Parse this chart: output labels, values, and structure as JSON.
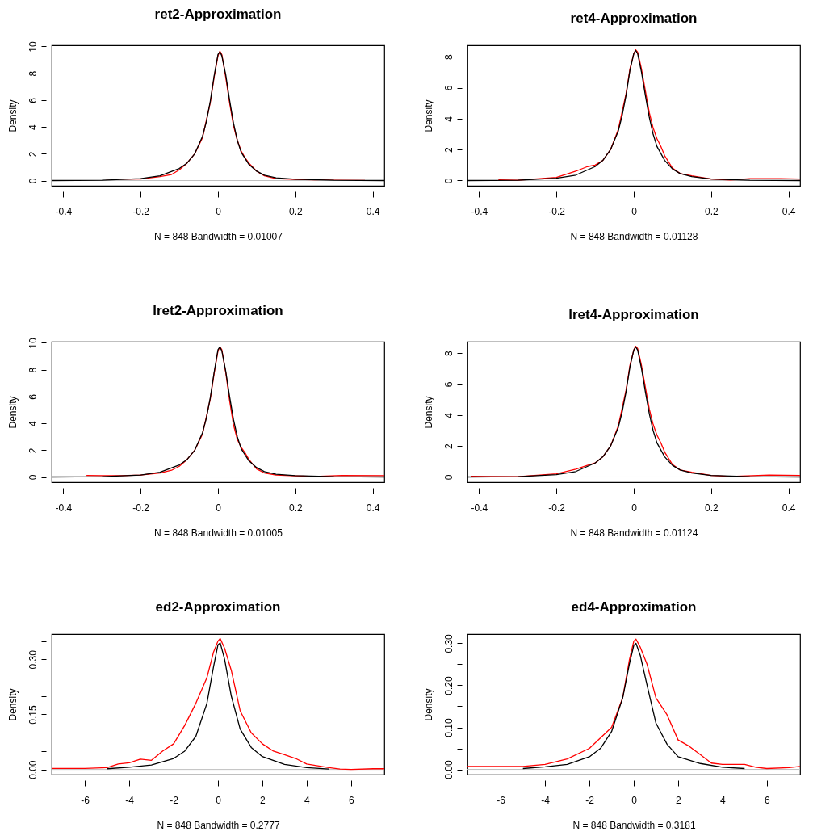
{
  "chart_data": [
    {
      "type": "line",
      "title": "ret2-Approximation",
      "xlabel": "N = 848   Bandwidth = 0.01007",
      "ylabel": "Density",
      "xlim": [
        -0.43,
        0.43
      ],
      "xticks": [
        -0.4,
        -0.2,
        0.0,
        0.2,
        0.4
      ],
      "ylim": [
        -0.39,
        10.09
      ],
      "yticks": [
        0,
        2,
        4,
        6,
        8,
        10
      ],
      "ref_lines": [
        {
          "axis": "y",
          "value": 0,
          "color": "#bebebe"
        }
      ],
      "series": [
        {
          "color": "#ff0000",
          "x": [
            -0.29,
            -0.2,
            -0.15,
            -0.12,
            -0.1,
            -0.08,
            -0.06,
            -0.04,
            -0.02,
            -0.01,
            0,
            0.005,
            0.01,
            0.02,
            0.03,
            0.04,
            0.05,
            0.06,
            0.07,
            0.08,
            0.1,
            0.12,
            0.15,
            0.2,
            0.25,
            0.3,
            0.38
          ],
          "values": [
            0.12,
            0.12,
            0.3,
            0.45,
            0.8,
            1.3,
            2.0,
            3.2,
            5.8,
            7.7,
            9.3,
            9.65,
            9.4,
            7.7,
            5.8,
            4.1,
            3.0,
            2.2,
            1.7,
            1.3,
            0.7,
            0.35,
            0.15,
            0.08,
            0.05,
            0.1,
            0.12
          ]
        },
        {
          "color": "#000000",
          "x": [
            -0.43,
            -0.3,
            -0.2,
            -0.15,
            -0.1,
            -0.08,
            -0.06,
            -0.04,
            -0.03,
            -0.02,
            -0.01,
            0,
            0.005,
            0.01,
            0.02,
            0.03,
            0.04,
            0.05,
            0.06,
            0.08,
            0.1,
            0.12,
            0.15,
            0.2,
            0.3,
            0.43
          ],
          "values": [
            0,
            0.02,
            0.15,
            0.35,
            0.9,
            1.3,
            2.0,
            3.3,
            4.4,
            5.9,
            7.8,
            9.4,
            9.6,
            9.3,
            7.9,
            6.0,
            4.3,
            3.0,
            2.1,
            1.2,
            0.7,
            0.4,
            0.2,
            0.1,
            0.02,
            0
          ]
        }
      ]
    },
    {
      "type": "line",
      "title": "ret4-Approximation",
      "xlabel": "N = 848   Bandwidth = 0.01128",
      "ylabel": "Density",
      "xlim": [
        -0.43,
        0.43
      ],
      "xticks": [
        -0.4,
        -0.2,
        0.0,
        0.2,
        0.4
      ],
      "ylim": [
        -0.34,
        8.74
      ],
      "yticks": [
        0,
        2,
        4,
        6,
        8
      ],
      "ref_lines": [
        {
          "axis": "y",
          "value": 0,
          "color": "#bebebe"
        }
      ],
      "series": [
        {
          "color": "#ff0000",
          "x": [
            -0.35,
            -0.3,
            -0.2,
            -0.15,
            -0.12,
            -0.1,
            -0.08,
            -0.06,
            -0.04,
            -0.02,
            -0.01,
            0,
            0.005,
            0.01,
            0.02,
            0.03,
            0.04,
            0.05,
            0.06,
            0.07,
            0.08,
            0.1,
            0.12,
            0.15,
            0.2,
            0.25,
            0.3,
            0.38,
            0.43
          ],
          "values": [
            0.05,
            0.02,
            0.2,
            0.6,
            0.9,
            1.0,
            1.3,
            2.0,
            3.3,
            5.6,
            7.2,
            8.2,
            8.45,
            8.3,
            7.2,
            5.8,
            4.4,
            3.4,
            2.7,
            2.2,
            1.6,
            0.8,
            0.45,
            0.3,
            0.1,
            0.03,
            0.12,
            0.12,
            0.1
          ]
        },
        {
          "color": "#000000",
          "x": [
            -0.43,
            -0.3,
            -0.2,
            -0.15,
            -0.1,
            -0.08,
            -0.06,
            -0.04,
            -0.03,
            -0.02,
            -0.01,
            0,
            0.005,
            0.01,
            0.02,
            0.03,
            0.04,
            0.05,
            0.06,
            0.08,
            0.1,
            0.12,
            0.15,
            0.2,
            0.3,
            0.43
          ],
          "values": [
            0,
            0.02,
            0.15,
            0.35,
            0.9,
            1.3,
            2.0,
            3.2,
            4.2,
            5.5,
            7.1,
            8.2,
            8.4,
            8.2,
            7.0,
            5.5,
            4.1,
            3.0,
            2.2,
            1.3,
            0.75,
            0.45,
            0.25,
            0.1,
            0.02,
            0
          ]
        }
      ]
    },
    {
      "type": "line",
      "title": "lret2-Approximation",
      "xlabel": "N = 848   Bandwidth = 0.01005",
      "ylabel": "Density",
      "xlim": [
        -0.43,
        0.43
      ],
      "xticks": [
        -0.4,
        -0.2,
        0.0,
        0.2,
        0.4
      ],
      "ylim": [
        -0.39,
        10.09
      ],
      "yticks": [
        0,
        2,
        4,
        6,
        8,
        10
      ],
      "ref_lines": [
        {
          "axis": "y",
          "value": 0,
          "color": "#bebebe"
        }
      ],
      "series": [
        {
          "color": "#ff0000",
          "x": [
            -0.34,
            -0.3,
            -0.25,
            -0.2,
            -0.15,
            -0.12,
            -0.1,
            -0.08,
            -0.06,
            -0.04,
            -0.02,
            -0.01,
            0,
            0.005,
            0.01,
            0.02,
            0.03,
            0.04,
            0.05,
            0.06,
            0.07,
            0.08,
            0.1,
            0.12,
            0.15,
            0.2,
            0.25,
            0.32,
            0.43
          ],
          "values": [
            0.12,
            0.1,
            0.1,
            0.15,
            0.3,
            0.5,
            0.8,
            1.3,
            2.0,
            3.2,
            5.8,
            7.7,
            9.4,
            9.7,
            9.5,
            7.8,
            5.7,
            3.9,
            2.8,
            2.2,
            1.8,
            1.3,
            0.6,
            0.3,
            0.15,
            0.08,
            0.04,
            0.12,
            0.1
          ]
        },
        {
          "color": "#000000",
          "x": [
            -0.43,
            -0.3,
            -0.2,
            -0.15,
            -0.1,
            -0.08,
            -0.06,
            -0.04,
            -0.03,
            -0.02,
            -0.01,
            0,
            0.005,
            0.01,
            0.02,
            0.03,
            0.04,
            0.05,
            0.06,
            0.08,
            0.1,
            0.12,
            0.15,
            0.2,
            0.3,
            0.43
          ],
          "values": [
            0,
            0.02,
            0.15,
            0.35,
            0.9,
            1.3,
            2.0,
            3.3,
            4.4,
            5.9,
            7.8,
            9.5,
            9.7,
            9.4,
            7.9,
            6.0,
            4.3,
            3.0,
            2.1,
            1.2,
            0.7,
            0.4,
            0.2,
            0.1,
            0.02,
            0
          ]
        }
      ]
    },
    {
      "type": "line",
      "title": "lret4-Approximation",
      "xlabel": "N = 848   Bandwidth = 0.01124",
      "ylabel": "Density",
      "xlim": [
        -0.43,
        0.43
      ],
      "xticks": [
        -0.4,
        -0.2,
        0.0,
        0.2,
        0.4
      ],
      "ylim": [
        -0.34,
        8.74
      ],
      "yticks": [
        0,
        2,
        4,
        6,
        8
      ],
      "ref_lines": [
        {
          "axis": "y",
          "value": 0,
          "color": "#bebebe"
        }
      ],
      "series": [
        {
          "color": "#ff0000",
          "x": [
            -0.42,
            -0.38,
            -0.3,
            -0.2,
            -0.15,
            -0.12,
            -0.1,
            -0.08,
            -0.06,
            -0.04,
            -0.02,
            -0.01,
            0,
            0.005,
            0.01,
            0.02,
            0.03,
            0.04,
            0.05,
            0.06,
            0.07,
            0.08,
            0.1,
            0.12,
            0.15,
            0.2,
            0.25,
            0.35,
            0.43
          ],
          "values": [
            0.05,
            0.03,
            0.02,
            0.2,
            0.5,
            0.75,
            0.9,
            1.3,
            2.0,
            3.3,
            5.6,
            7.2,
            8.2,
            8.45,
            8.3,
            7.2,
            5.8,
            4.4,
            3.4,
            2.7,
            2.2,
            1.6,
            0.8,
            0.45,
            0.3,
            0.1,
            0.03,
            0.12,
            0.1
          ]
        },
        {
          "color": "#000000",
          "x": [
            -0.43,
            -0.3,
            -0.2,
            -0.15,
            -0.1,
            -0.08,
            -0.06,
            -0.04,
            -0.03,
            -0.02,
            -0.01,
            0,
            0.005,
            0.01,
            0.02,
            0.03,
            0.04,
            0.05,
            0.06,
            0.08,
            0.1,
            0.12,
            0.15,
            0.2,
            0.3,
            0.43
          ],
          "values": [
            0,
            0.02,
            0.15,
            0.35,
            0.9,
            1.3,
            2.0,
            3.2,
            4.2,
            5.5,
            7.1,
            8.2,
            8.4,
            8.2,
            7.0,
            5.5,
            4.1,
            3.0,
            2.2,
            1.3,
            0.75,
            0.45,
            0.25,
            0.1,
            0.02,
            0
          ]
        }
      ]
    },
    {
      "type": "line",
      "title": "ed2-Approximation",
      "xlabel": "N = 848   Bandwidth = 0.2777",
      "ylabel": "Density",
      "xlim": [
        -7.5,
        7.5
      ],
      "xticks": [
        -6,
        -4,
        -2,
        0,
        2,
        4,
        6
      ],
      "ylim": [
        -0.014,
        0.369
      ],
      "yticks": [
        {
          "value": 0,
          "label": "0.00"
        },
        {
          "value": 0.05,
          "label": null
        },
        {
          "value": 0.1,
          "label": null
        },
        {
          "value": 0.15,
          "label": "0.15"
        },
        {
          "value": 0.2,
          "label": null
        },
        {
          "value": 0.25,
          "label": null
        },
        {
          "value": 0.3,
          "label": "0.30"
        },
        {
          "value": 0.35,
          "label": null
        }
      ],
      "ref_lines": [
        {
          "axis": "y",
          "value": 0,
          "color": "#bebebe"
        }
      ],
      "series": [
        {
          "color": "#ff0000",
          "x": [
            -7.5,
            -6,
            -5,
            -4.5,
            -4,
            -3.5,
            -3,
            -2.5,
            -2,
            -1.5,
            -1,
            -0.5,
            -0.2,
            0,
            0.1,
            0.3,
            0.6,
            1,
            1.5,
            2,
            2.5,
            3,
            3.5,
            4,
            5,
            5.5,
            6,
            7,
            7.5
          ],
          "values": [
            0.003,
            0.003,
            0.005,
            0.015,
            0.018,
            0.028,
            0.025,
            0.05,
            0.07,
            0.12,
            0.18,
            0.25,
            0.32,
            0.35,
            0.357,
            0.33,
            0.27,
            0.16,
            0.1,
            0.07,
            0.05,
            0.04,
            0.03,
            0.015,
            0.005,
            0.001,
            0,
            0.002,
            0.002
          ]
        },
        {
          "color": "#000000",
          "x": [
            -5,
            -4,
            -3,
            -2,
            -1.5,
            -1,
            -0.5,
            -0.2,
            0,
            0.1,
            0.3,
            0.6,
            1,
            1.5,
            2,
            3,
            4,
            5
          ],
          "values": [
            0.002,
            0.006,
            0.012,
            0.03,
            0.05,
            0.09,
            0.18,
            0.28,
            0.34,
            0.345,
            0.3,
            0.2,
            0.11,
            0.06,
            0.035,
            0.014,
            0.005,
            0.001
          ]
        }
      ]
    },
    {
      "type": "line",
      "title": "ed4-Approximation",
      "xlabel": "N = 848   Bandwidth = 0.3181",
      "ylabel": "Density",
      "xlim": [
        -7.5,
        7.5
      ],
      "xticks": [
        -6,
        -4,
        -2,
        0,
        2,
        4,
        6
      ],
      "ylim": [
        -0.0124,
        0.322
      ],
      "yticks": [
        {
          "value": 0,
          "label": "0.00"
        },
        {
          "value": 0.05,
          "label": null
        },
        {
          "value": 0.1,
          "label": "0.10"
        },
        {
          "value": 0.15,
          "label": null
        },
        {
          "value": 0.2,
          "label": "0.20"
        },
        {
          "value": 0.25,
          "label": null
        },
        {
          "value": 0.3,
          "label": "0.30"
        }
      ],
      "ref_lines": [
        {
          "axis": "y",
          "value": 0,
          "color": "#bebebe"
        }
      ],
      "series": [
        {
          "color": "#ff0000",
          "x": [
            -7.5,
            -5,
            -4,
            -3,
            -2,
            -1.5,
            -1,
            -0.5,
            -0.2,
            0,
            0.1,
            0.3,
            0.6,
            1,
            1.5,
            2,
            2.5,
            3,
            3.5,
            4,
            5,
            5.5,
            6,
            7,
            7.5
          ],
          "values": [
            0.007,
            0.007,
            0.012,
            0.025,
            0.05,
            0.075,
            0.1,
            0.17,
            0.26,
            0.305,
            0.31,
            0.29,
            0.25,
            0.17,
            0.13,
            0.07,
            0.055,
            0.035,
            0.015,
            0.012,
            0.012,
            0.005,
            0.002,
            0.004,
            0.007
          ]
        },
        {
          "color": "#000000",
          "x": [
            -5,
            -4,
            -3,
            -2,
            -1.5,
            -1,
            -0.5,
            -0.2,
            0,
            0.1,
            0.3,
            0.6,
            1,
            1.5,
            2,
            3,
            4,
            5
          ],
          "values": [
            0.002,
            0.006,
            0.012,
            0.03,
            0.05,
            0.09,
            0.17,
            0.25,
            0.295,
            0.3,
            0.27,
            0.2,
            0.11,
            0.06,
            0.03,
            0.014,
            0.005,
            0.002
          ]
        }
      ]
    }
  ]
}
